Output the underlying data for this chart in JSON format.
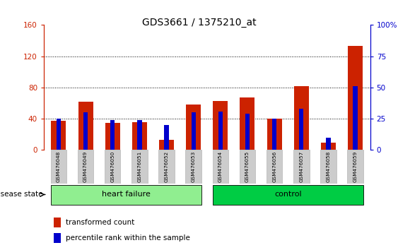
{
  "title": "GDS3661 / 1375210_at",
  "samples": [
    "GSM476048",
    "GSM476049",
    "GSM476050",
    "GSM476051",
    "GSM476052",
    "GSM476053",
    "GSM476054",
    "GSM476055",
    "GSM476056",
    "GSM476057",
    "GSM476058",
    "GSM476059"
  ],
  "red_values": [
    37,
    62,
    35,
    36,
    13,
    58,
    63,
    67,
    40,
    82,
    9,
    133
  ],
  "blue_values_pct": [
    25,
    30,
    24,
    24,
    20,
    30,
    31,
    29,
    25,
    33,
    10,
    51
  ],
  "ylim_left": [
    0,
    160
  ],
  "ylim_right": [
    0,
    100
  ],
  "yticks_left": [
    0,
    40,
    80,
    120,
    160
  ],
  "yticks_right": [
    0,
    25,
    50,
    75,
    100
  ],
  "disease_groups": [
    {
      "label": "heart failure",
      "indices": [
        0,
        1,
        2,
        3,
        4,
        5
      ],
      "color": "#90EE90"
    },
    {
      "label": "control",
      "indices": [
        6,
        7,
        8,
        9,
        10,
        11
      ],
      "color": "#00CC44"
    }
  ],
  "bar_color_red": "#CC2200",
  "bar_color_blue": "#0000CC",
  "bar_width": 0.55,
  "left_tick_color": "#CC2200",
  "right_tick_color": "#0000CC",
  "disease_state_label": "disease state",
  "legend_items": [
    "transformed count",
    "percentile rank within the sample"
  ]
}
